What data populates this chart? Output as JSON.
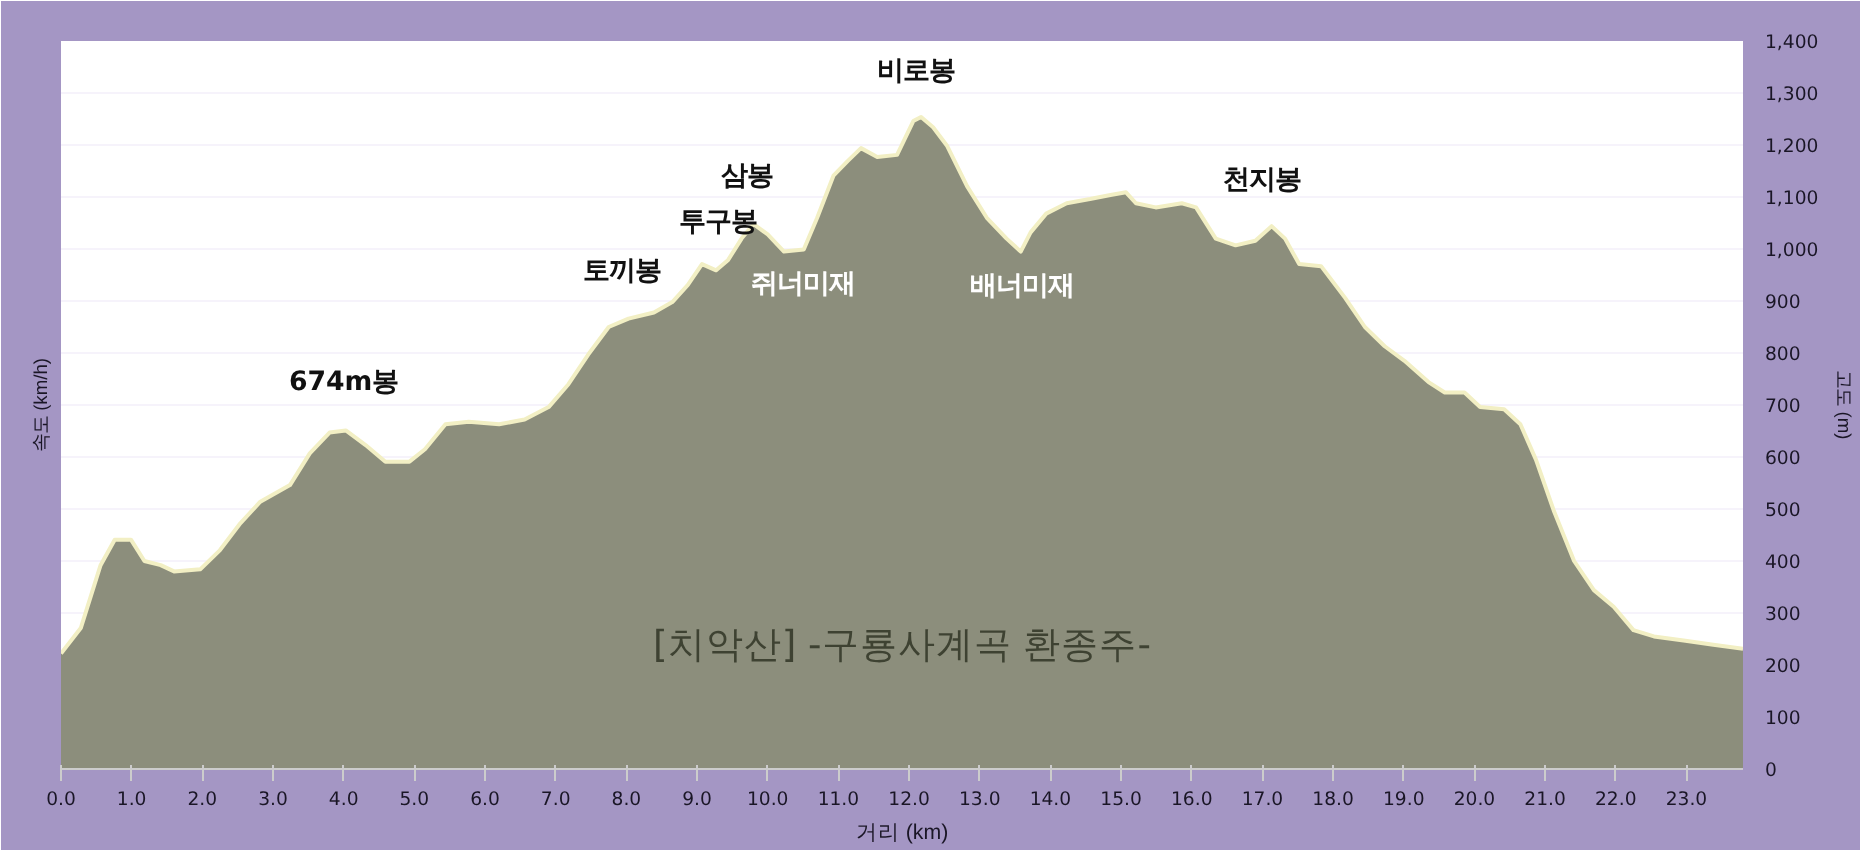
{
  "chart_data": {
    "type": "area",
    "title": "[치악산] -구룡사계곡 환종주-",
    "xlabel": "거리 (km)",
    "ylabel": "고도 (m)",
    "x": [
      0,
      0.28,
      0.56,
      0.76,
      0.99,
      1.18,
      1.41,
      1.6,
      1.97,
      2.25,
      2.54,
      2.82,
      3.24,
      3.52,
      3.8,
      4.03,
      4.31,
      4.59,
      4.93,
      5.15,
      5.44,
      5.77,
      6.2,
      6.56,
      6.9,
      7.18,
      7.46,
      7.75,
      8.03,
      8.39,
      8.65,
      8.87,
      9.07,
      9.27,
      9.44,
      9.63,
      9.8,
      10.0,
      10.23,
      10.51,
      10.7,
      10.93,
      11.13,
      11.32,
      11.55,
      11.83,
      12.06,
      12.17,
      12.34,
      12.54,
      12.82,
      13.1,
      13.38,
      13.58,
      13.72,
      13.94,
      14.23,
      14.56,
      14.85,
      15.07,
      15.21,
      15.49,
      15.86,
      16.06,
      16.34,
      16.62,
      16.9,
      17.13,
      17.32,
      17.52,
      17.83,
      18.17,
      18.45,
      18.73,
      19.01,
      19.35,
      19.58,
      19.86,
      20.08,
      20.42,
      20.65,
      20.87,
      21.13,
      21.41,
      21.69,
      21.97,
      22.25,
      22.54,
      22.96,
      23.38,
      23.8
    ],
    "series": [
      {
        "color": "#8c8e7c",
        "values": [
          222,
          271,
          392,
          441,
          441,
          400,
          392,
          380,
          384,
          421,
          473,
          514,
          546,
          607,
          647,
          651,
          623,
          591,
          591,
          615,
          663,
          668,
          663,
          672,
          696,
          740,
          797,
          850,
          866,
          878,
          898,
          931,
          971,
          959,
          979,
          1020,
          1048,
          1028,
          995,
          999,
          1060,
          1141,
          1169,
          1194,
          1177,
          1181,
          1246,
          1254,
          1234,
          1198,
          1121,
          1060,
          1020,
          995,
          1032,
          1068,
          1088,
          1096,
          1104,
          1109,
          1088,
          1080,
          1088,
          1080,
          1020,
          1007,
          1016,
          1044,
          1020,
          971,
          967,
          906,
          850,
          813,
          785,
          744,
          724,
          724,
          696,
          692,
          663,
          595,
          494,
          400,
          344,
          312,
          267,
          255,
          247,
          239,
          231
        ]
      }
    ],
    "annotations": [
      "속도 (km/h)",
      {
        "text": "674m봉",
        "x": 4.0,
        "y": 651
      },
      {
        "text": "토끼봉",
        "x": 7.94,
        "y": 866
      },
      {
        "text": "투구봉",
        "x": 9.3,
        "y": 959
      },
      {
        "text": "삼봉",
        "x": 9.7,
        "y": 1048
      },
      {
        "text": "비로봉",
        "x": 12.1,
        "y": 1250
      },
      {
        "text": "천지봉",
        "x": 17.0,
        "y": 1040
      },
      {
        "text": "쥐너미재",
        "x": 10.5,
        "y": 999
      },
      {
        "text": "배너미재",
        "x": 13.6,
        "y": 995
      }
    ],
    "xlim": [
      0,
      23.8
    ],
    "xticks": [
      {
        "value": 0,
        "label": "0.0"
      },
      {
        "value": 1,
        "label": "1.0"
      },
      {
        "value": 2,
        "label": "2.0"
      },
      {
        "value": 3,
        "label": "3.0"
      },
      {
        "value": 4,
        "label": "4.0"
      },
      {
        "value": 5,
        "label": "5.0"
      },
      {
        "value": 6,
        "label": "6.0"
      },
      {
        "value": 7,
        "label": "7.0"
      },
      {
        "value": 8,
        "label": "8.0"
      },
      {
        "value": 9,
        "label": "9.0"
      },
      {
        "value": 10,
        "label": "10.0"
      },
      {
        "value": 11,
        "label": "11.0"
      },
      {
        "value": 12,
        "label": "12.0"
      },
      {
        "value": 13,
        "label": "13.0"
      },
      {
        "value": 14,
        "label": "14.0"
      },
      {
        "value": 15,
        "label": "15.0"
      },
      {
        "value": 16,
        "label": "16.0"
      },
      {
        "value": 17,
        "label": "17.0"
      },
      {
        "value": 18,
        "label": "18.0"
      },
      {
        "value": 19,
        "label": "19.0"
      },
      {
        "value": 20,
        "label": "20.0"
      },
      {
        "value": 21,
        "label": "21.0"
      },
      {
        "value": 22,
        "label": "22.0"
      },
      {
        "value": 23,
        "label": "23.0"
      }
    ],
    "ylim": [
      0,
      1400
    ],
    "yticks": [
      0,
      100,
      200,
      300,
      400,
      500,
      600,
      700,
      800,
      900,
      {
        "value": 1000,
        "label": "1,000"
      },
      {
        "value": 1100,
        "label": "1,100"
      },
      {
        "value": 1200,
        "label": "1,200"
      },
      {
        "value": 1300,
        "label": "1,300"
      },
      {
        "value": 1400,
        "label": "1,400"
      }
    ],
    "grid": "y",
    "marker": "none",
    "line_style": "solid"
  }
}
